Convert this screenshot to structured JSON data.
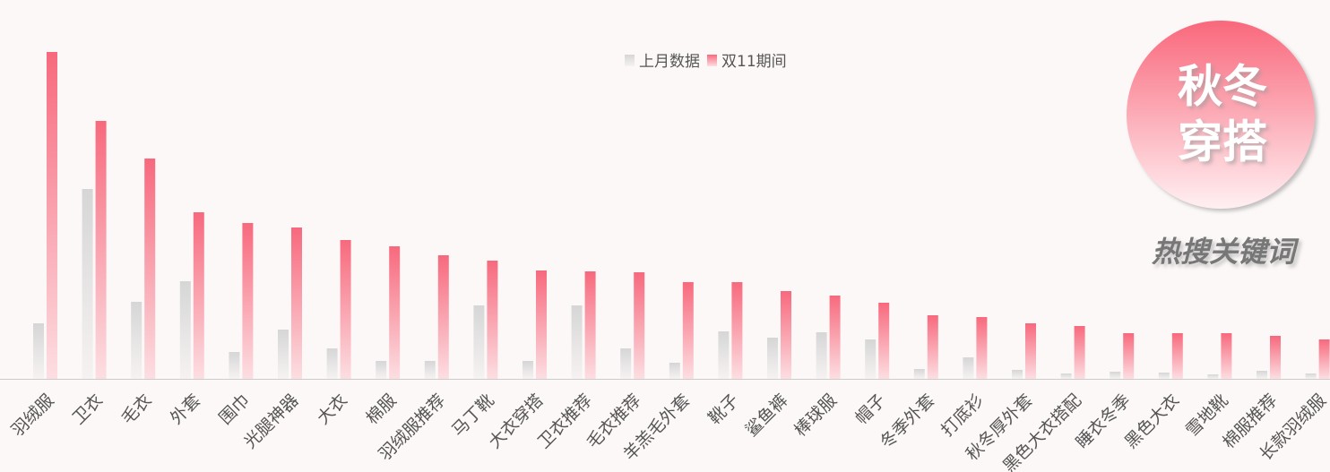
{
  "chart_data": {
    "type": "bar",
    "badge": [
      "秋冬",
      "穿搭"
    ],
    "subtitle": "热搜关键词",
    "categories": [
      "羽绒服",
      "卫衣",
      "毛衣",
      "外套",
      "围巾",
      "光腿神器",
      "大衣",
      "棉服",
      "羽绒服推荐",
      "马丁靴",
      "大衣穿搭",
      "卫衣推荐",
      "毛衣推荐",
      "羊羔毛外套",
      "靴子",
      "鲨鱼裤",
      "棒球服",
      "帽子",
      "冬季外套",
      "打底衫",
      "秋冬厚外套",
      "黑色大衣搭配",
      "睡衣冬季",
      "黑色大衣",
      "雪地靴",
      "棉服推荐",
      "长款羽绒服"
    ],
    "series": [
      {
        "name": "上月数据",
        "color": "#d6d6d6",
        "values": [
          62,
          212,
          86,
          109,
          30,
          55,
          34,
          20,
          20,
          82,
          20,
          82,
          34,
          18,
          53,
          46,
          52,
          44,
          11,
          24,
          10,
          6,
          8,
          7,
          5,
          9,
          6
        ]
      },
      {
        "name": "双11期间",
        "color": "#f7697d",
        "values": [
          365,
          288,
          246,
          186,
          174,
          169,
          155,
          148,
          138,
          132,
          121,
          120,
          119,
          108,
          108,
          98,
          93,
          85,
          71,
          69,
          62,
          59,
          51,
          51,
          51,
          48,
          44
        ]
      }
    ],
    "legend": "top"
  }
}
